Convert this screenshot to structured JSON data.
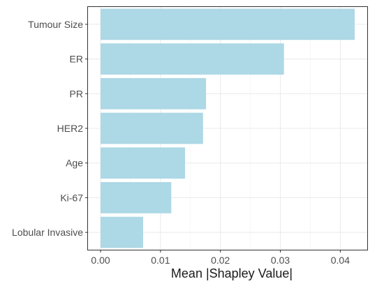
{
  "chart_data": {
    "type": "bar",
    "orientation": "horizontal",
    "categories": [
      "Tumour Size",
      "ER",
      "PR",
      "HER2",
      "Age",
      "Ki-67",
      "Lobular Invasive"
    ],
    "values": [
      0.0424,
      0.0306,
      0.0176,
      0.0171,
      0.0141,
      0.0118,
      0.0071
    ],
    "xlabel": "Mean |Shapley Value|",
    "ylabel": "",
    "xlim": [
      -0.0021,
      0.0445
    ],
    "x_ticks": [
      0,
      0.01,
      0.02,
      0.03,
      0.04
    ],
    "x_tick_labels": [
      "0.00",
      "0.01",
      "0.02",
      "0.03",
      "0.04"
    ],
    "grid": true,
    "bar_color": "#add8e6"
  }
}
